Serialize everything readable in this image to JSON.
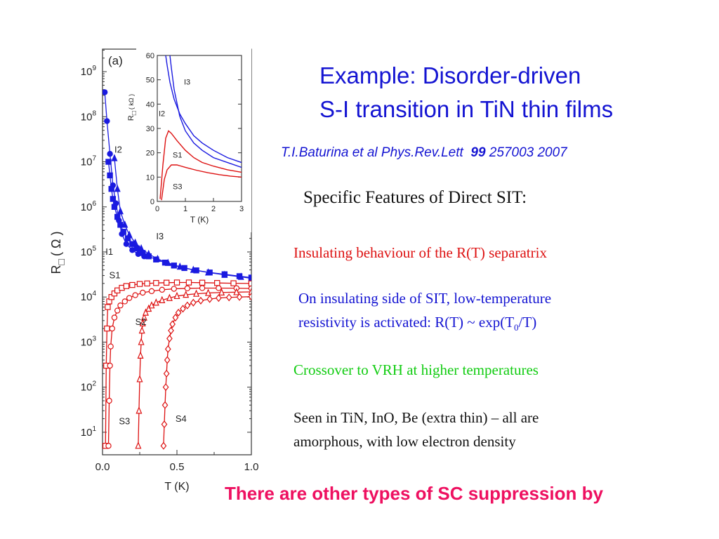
{
  "title": {
    "line1": "Example:   Disorder-driven",
    "line2": "S-I transition in TiN thin films"
  },
  "citation": {
    "authors": "T.I.Baturina et al Phys.Rev.Lett",
    "volume": "99",
    "pages": "257003 2007"
  },
  "subtitle": "Specific Features of Direct SIT:",
  "points": [
    {
      "text": "Insulating behaviour of the  R(T) separatrix",
      "color": "#dd1111"
    },
    {
      "text_before": "On insulating side of SIT, low-temperature",
      "text_line2_before": "resistivity  is  activated:  R(T) ~ exp(T",
      "subscript": "0",
      "text_line2_after": "/T)",
      "color": "#1414d2"
    },
    {
      "text": "Crossover to VRH at higher temperatures",
      "color": "#11cc11"
    },
    {
      "line1": "Seen in TiN,   InO,   Be (extra thin) – all are",
      "line2": "amorphous,  with low electron density",
      "color": "#111111"
    }
  ],
  "footer": "There are other types of SC suppression by",
  "chart_data": [
    {
      "type": "scatter",
      "panel_label": "(a)",
      "xlabel": "T (K)",
      "ylabel": "R□ ( Ω )",
      "ylabel_parts": {
        "main": "R",
        "sub": "□",
        "unit": "( Ω )"
      },
      "yscale": "log",
      "xlim": [
        0,
        1.0
      ],
      "ylim_exp": [
        0.5,
        9.5
      ],
      "x_ticks": [
        "0.0",
        "0.5",
        "1.0"
      ],
      "y_ticks": [
        "10^1",
        "10^2",
        "10^3",
        "10^4",
        "10^5",
        "10^6",
        "10^7",
        "10^8",
        "10^9"
      ],
      "series": [
        {
          "name": "I1",
          "color": "#1a1ae0",
          "marker": "circle-filled",
          "x": [
            0.015,
            0.03,
            0.05,
            0.07,
            0.09,
            0.11,
            0.13,
            0.16,
            0.2,
            0.24,
            0.28
          ],
          "y": [
            350000000.0,
            80000000.0,
            15000000.0,
            3000000.0,
            1200000.0,
            500000.0,
            250000.0,
            150000.0,
            110000.0,
            90000.0,
            80000.0
          ]
        },
        {
          "name": "I2",
          "color": "#1a1ae0",
          "marker": "square-filled",
          "x": [
            0.04,
            0.05,
            0.06,
            0.07,
            0.08,
            0.1,
            0.12,
            0.14,
            0.17,
            0.2,
            0.23,
            0.27,
            0.31,
            0.36,
            0.42,
            0.48,
            0.55,
            0.63,
            0.72,
            0.82,
            0.92,
            1.0
          ],
          "y": [
            10000000.0,
            5000000.0,
            2500000.0,
            1500000.0,
            1000000.0,
            600000.0,
            400000.0,
            280000.0,
            200000.0,
            150000.0,
            120000.0,
            95000.0,
            80000.0,
            68000.0,
            58000.0,
            50000.0,
            44000.0,
            39000.0,
            35000.0,
            32000.0,
            29000.0,
            27000.0
          ]
        },
        {
          "name": "I3",
          "color": "#1a1ae0",
          "marker": "triangle-filled",
          "x": [
            0.08,
            0.1,
            0.12,
            0.15,
            0.18,
            0.22,
            0.26,
            0.31,
            0.37,
            0.44,
            0.52,
            0.61,
            0.71,
            0.82,
            0.93,
            1.0
          ],
          "y": [
            12000000.0,
            2500000.0,
            800000.0,
            400000.0,
            240000.0,
            160000.0,
            120000.0,
            90000.0,
            70000.0,
            57000.0,
            47000.0,
            40000.0,
            35000.0,
            31000.0,
            28000.0,
            26000.0
          ]
        },
        {
          "name": "S1",
          "color": "#dd1111",
          "marker": "square-open",
          "x": [
            0.02,
            0.025,
            0.03,
            0.035,
            0.045,
            0.06,
            0.08,
            0.1,
            0.13,
            0.16,
            0.2,
            0.25,
            0.3,
            0.36,
            0.43,
            0.5,
            0.58,
            0.67,
            0.77,
            0.88,
            1.0
          ],
          "y": [
            5,
            300,
            2000,
            6000,
            8000,
            10000,
            12000,
            14000,
            16000,
            17500,
            18500,
            19500,
            20000,
            20500,
            20800,
            21000,
            21000,
            20800,
            20500,
            20200,
            20000
          ]
        },
        {
          "name": "S2",
          "color": "#dd1111",
          "marker": "circle-open",
          "x": [
            0.04,
            0.045,
            0.05,
            0.055,
            0.065,
            0.08,
            0.1,
            0.12,
            0.15,
            0.18,
            0.22,
            0.27,
            0.33,
            0.4,
            0.48,
            0.57,
            0.67,
            0.78,
            0.9,
            1.0
          ],
          "y": [
            5,
            50,
            300,
            800,
            2000,
            3500,
            5000,
            6500,
            8000,
            9500,
            11000,
            12500,
            13500,
            14500,
            15200,
            15600,
            15800,
            15800,
            15700,
            15500
          ]
        },
        {
          "name": "S3",
          "color": "#dd1111",
          "marker": "triangle-open",
          "x": [
            0.24,
            0.245,
            0.25,
            0.255,
            0.26,
            0.265,
            0.27,
            0.28,
            0.29,
            0.31,
            0.33,
            0.36,
            0.4,
            0.45,
            0.5,
            0.56,
            0.63,
            0.71,
            0.8,
            0.9,
            1.0
          ],
          "y": [
            5,
            30,
            150,
            500,
            1000,
            1800,
            2600,
            3500,
            4500,
            5500,
            6500,
            7500,
            8500,
            9500,
            10500,
            11200,
            11800,
            12300,
            12600,
            12800,
            13000
          ]
        },
        {
          "name": "S4",
          "color": "#dd1111",
          "marker": "diamond-open",
          "x": [
            0.41,
            0.415,
            0.42,
            0.425,
            0.43,
            0.435,
            0.44,
            0.45,
            0.46,
            0.47,
            0.49,
            0.51,
            0.54,
            0.57,
            0.61,
            0.66,
            0.72,
            0.78,
            0.85,
            0.92,
            1.0
          ],
          "y": [
            5,
            15,
            40,
            100,
            200,
            400,
            700,
            1200,
            1800,
            2500,
            3500,
            4500,
            5500,
            6500,
            7500,
            8300,
            9000,
            9500,
            9800,
            10000,
            10200
          ]
        }
      ],
      "curve_labels": [
        "I1",
        "I2",
        "I3",
        "S1",
        "S2",
        "S3",
        "S4"
      ]
    },
    {
      "type": "line",
      "panel_label": "inset",
      "xlabel": "T (K)",
      "ylabel": "R□ ( kΩ )",
      "ylabel_parts": {
        "main": "R",
        "sub": "□",
        "unit": "( kΩ )"
      },
      "xlim": [
        0,
        3
      ],
      "ylim": [
        0,
        60
      ],
      "x_ticks": [
        "0",
        "1",
        "2",
        "3"
      ],
      "y_ticks": [
        "0",
        "10",
        "20",
        "30",
        "40",
        "50",
        "60"
      ],
      "series": [
        {
          "name": "I3",
          "color": "#1a1ae0",
          "x": [
            0.3,
            0.35,
            0.45,
            0.6,
            0.8,
            1.0,
            1.3,
            1.6,
            2.0,
            2.5,
            3.0
          ],
          "y": [
            60,
            56,
            49,
            42,
            36,
            32,
            27,
            24,
            21,
            18,
            16
          ]
        },
        {
          "name": "I2",
          "color": "#1a1ae0",
          "x": [
            0.45,
            0.5,
            0.6,
            0.8,
            1.0,
            1.3,
            1.6,
            2.0,
            2.5,
            3.0
          ],
          "y": [
            60,
            55,
            46,
            35,
            29,
            24,
            21,
            18,
            16,
            14
          ]
        },
        {
          "name": "S1",
          "color": "#dd1111",
          "x": [
            0.1,
            0.2,
            0.3,
            0.4,
            0.5,
            0.7,
            1.0,
            1.3,
            1.6,
            2.0,
            2.5,
            3.0
          ],
          "y": [
            1,
            15,
            26,
            29,
            28,
            25,
            21,
            18,
            16,
            14.5,
            13,
            12
          ]
        },
        {
          "name": "S3",
          "color": "#dd1111",
          "x": [
            0.15,
            0.25,
            0.35,
            0.5,
            0.7,
            1.0,
            1.4,
            1.8,
            2.2,
            2.6,
            3.0
          ],
          "y": [
            0.5,
            9,
            13,
            15,
            15,
            14,
            12.8,
            11.8,
            11,
            10.4,
            10
          ]
        }
      ],
      "curve_labels": [
        "I3",
        "I2",
        "S1",
        "S3"
      ]
    }
  ]
}
